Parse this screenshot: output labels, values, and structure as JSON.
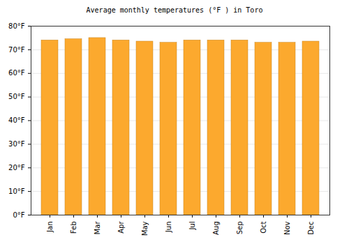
{
  "chart_data": {
    "type": "bar",
    "title": "Average monthly temperatures (°F ) in Toro",
    "categories": [
      "Jan",
      "Feb",
      "Mar",
      "Apr",
      "May",
      "Jun",
      "Jul",
      "Aug",
      "Sep",
      "Oct",
      "Nov",
      "Dec"
    ],
    "values": [
      74,
      74.5,
      75,
      74,
      73.5,
      73,
      74,
      74,
      74,
      73,
      73,
      73.5
    ],
    "color": "#fca92e",
    "ylim": [
      0,
      80
    ],
    "yticks": [
      {
        "value": 0,
        "label": "0°F"
      },
      {
        "value": 10,
        "label": "10°F"
      },
      {
        "value": 20,
        "label": "20°F"
      },
      {
        "value": 30,
        "label": "30°F"
      },
      {
        "value": 40,
        "label": "40°F"
      },
      {
        "value": 50,
        "label": "50°F"
      },
      {
        "value": 60,
        "label": "60°F"
      },
      {
        "value": 70,
        "label": "70°F"
      },
      {
        "value": 80,
        "label": "80°F"
      }
    ],
    "grid": true
  }
}
